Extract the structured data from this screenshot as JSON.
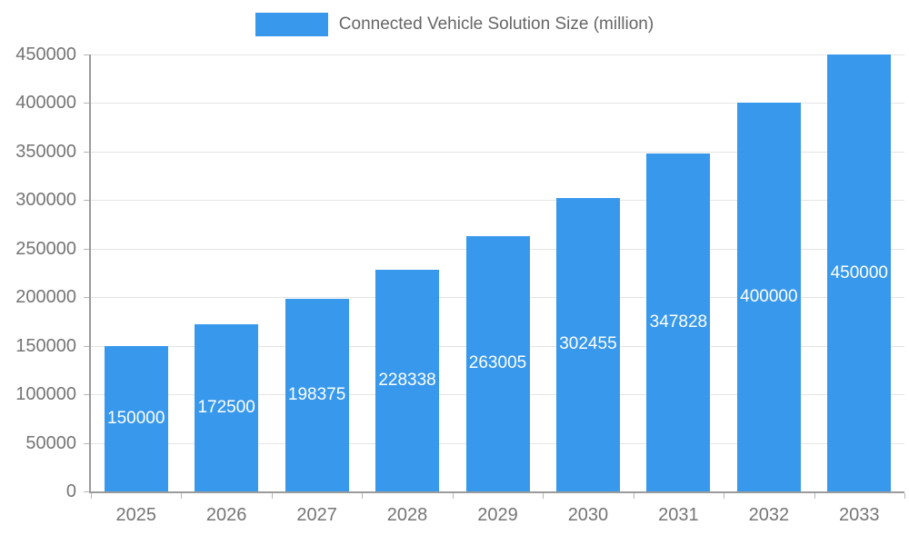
{
  "chart_data": {
    "type": "bar",
    "title": "",
    "legend_label": "Connected Vehicle Solution Size (million)",
    "legend_position": "top",
    "categories": [
      "2025",
      "2026",
      "2027",
      "2028",
      "2029",
      "2030",
      "2031",
      "2032",
      "2033"
    ],
    "values": [
      150000,
      172500,
      198375,
      228338,
      263005,
      302455,
      347828,
      400000,
      450000
    ],
    "xlabel": "",
    "ylabel": "",
    "ylim": [
      0,
      450000
    ],
    "ytick_step": 50000,
    "grid": true,
    "bar_color": "#3898ec",
    "value_label_color": "#ffffff",
    "axis_color": "#9b9b9b",
    "grid_color": "#e4e4e4",
    "tick_label_color": "#757575"
  }
}
